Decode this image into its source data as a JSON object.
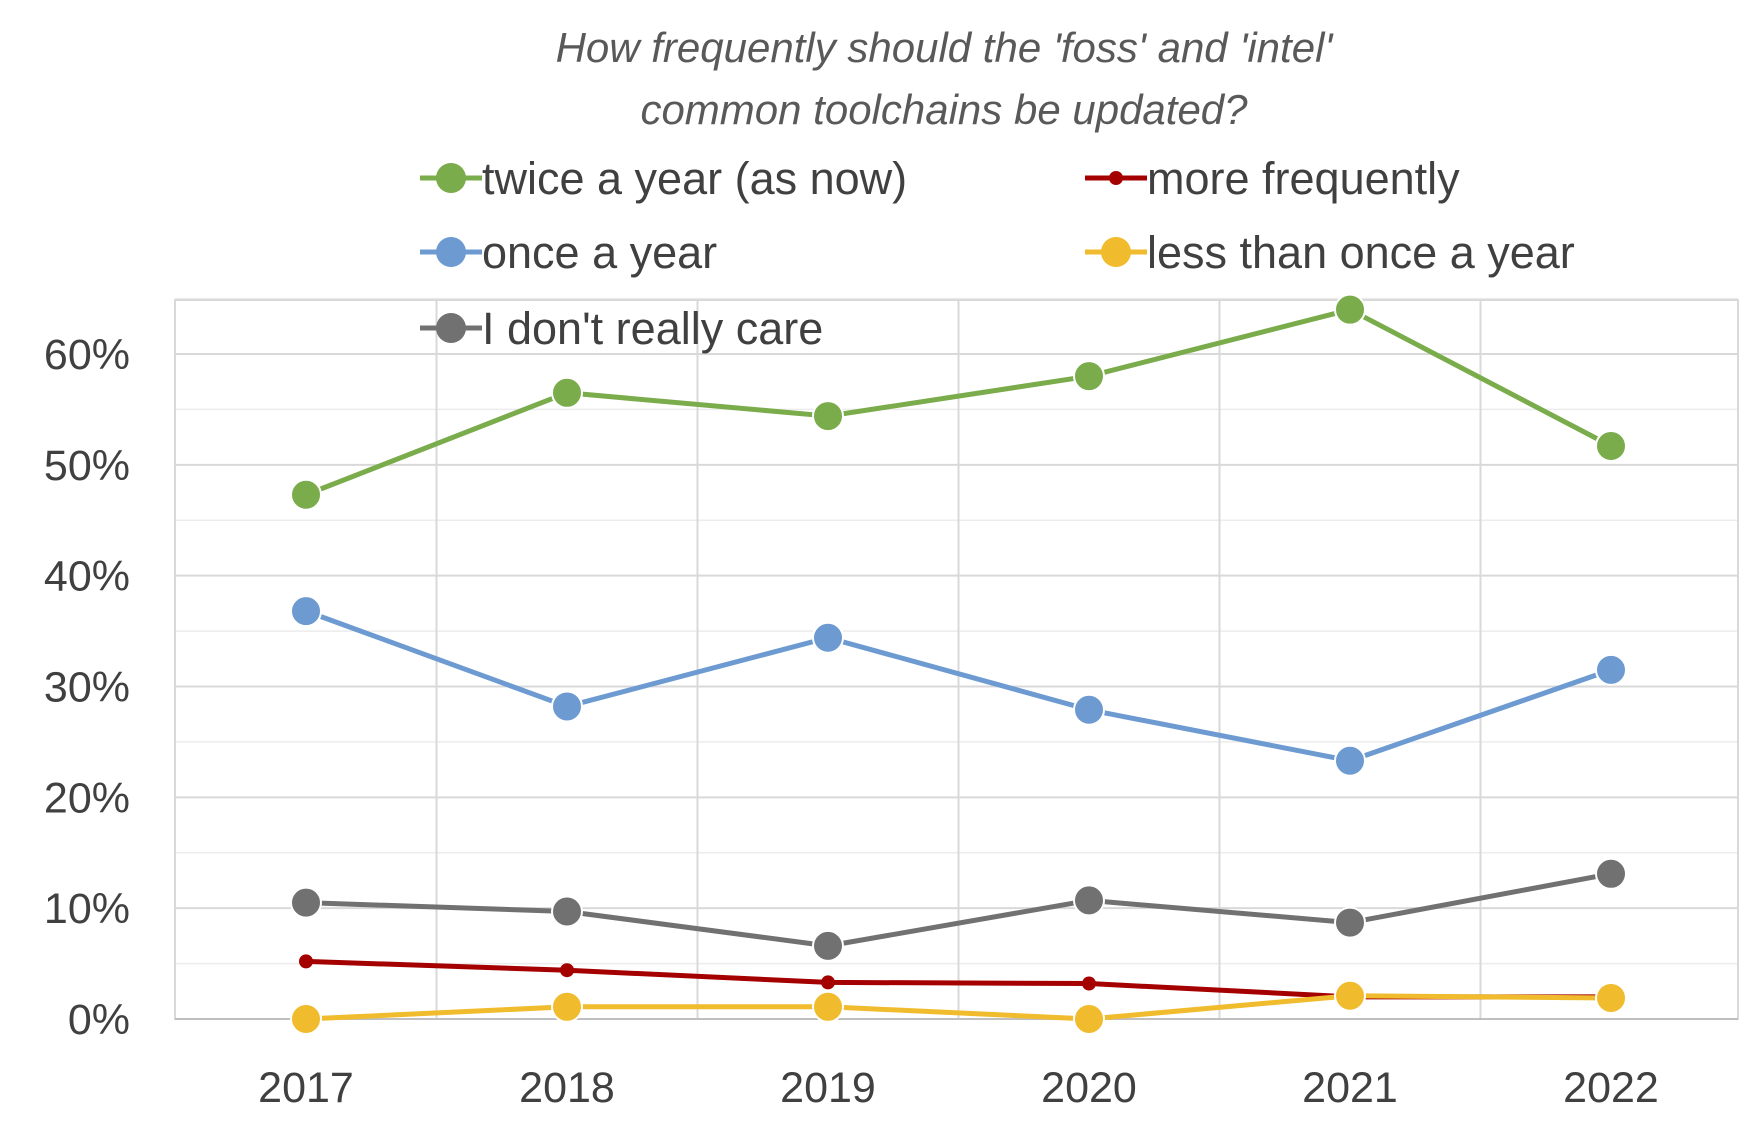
{
  "chart_data": {
    "type": "line",
    "title": [
      "How frequently should the 'foss' and 'intel'",
      "common toolchains be updated?"
    ],
    "xlabel": "",
    "ylabel": "",
    "categories": [
      "2017",
      "2018",
      "2019",
      "2020",
      "2021",
      "2022"
    ],
    "ylim": [
      0,
      0.65
    ],
    "y_ticks": [
      0,
      0.1,
      0.2,
      0.3,
      0.4,
      0.5,
      0.6
    ],
    "y_tick_labels": [
      "0%",
      "10%",
      "20%",
      "30%",
      "40%",
      "50%",
      "60%"
    ],
    "grid": true,
    "legend_position": "top",
    "series": [
      {
        "name": "twice a year (as now)",
        "color": "#7aac4c",
        "marker": "large",
        "values": [
          0.473,
          0.565,
          0.544,
          0.58,
          0.64,
          0.517
        ]
      },
      {
        "name": "more frequently",
        "color": "#a50000",
        "marker": "small",
        "values": [
          0.052,
          0.044,
          0.033,
          0.032,
          0.02,
          0.02
        ]
      },
      {
        "name": "once a year",
        "color": "#6d9bd1",
        "marker": "large",
        "values": [
          0.368,
          0.282,
          0.344,
          0.279,
          0.233,
          0.315
        ]
      },
      {
        "name": "less than once a year",
        "color": "#f0bb2c",
        "marker": "large",
        "values": [
          0.0,
          0.011,
          0.011,
          0.0,
          0.021,
          0.019
        ]
      },
      {
        "name": "I don't really care",
        "color": "#717171",
        "marker": "large",
        "values": [
          0.105,
          0.097,
          0.066,
          0.107,
          0.087,
          0.131
        ]
      }
    ]
  }
}
